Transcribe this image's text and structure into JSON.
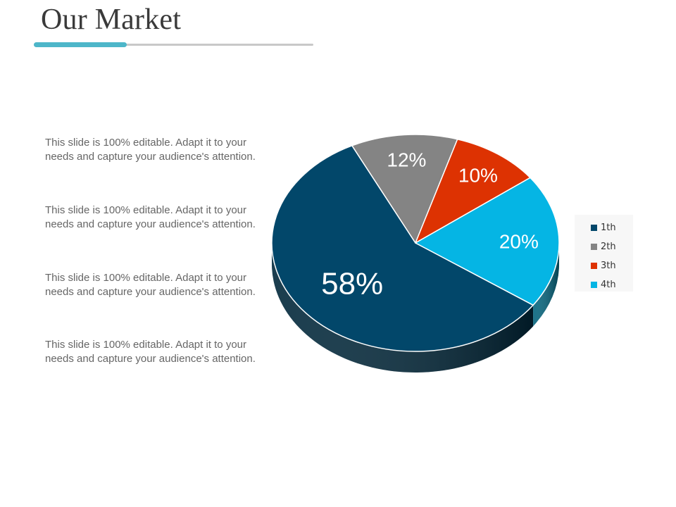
{
  "page": {
    "title": "Our Market",
    "accent_color": "#4db6c9"
  },
  "paragraphs": [
    "This slide is 100% editable. Adapt it to your needs and capture your audience's attention.",
    "This slide is 100% editable. Adapt it to your needs and capture your audience's attention.",
    "This slide is 100% editable. Adapt it to your needs and capture your audience's attention.",
    "This slide is 100% editable. Adapt it to your needs and capture your audience's attention."
  ],
  "chart_data": {
    "type": "pie",
    "style": "3d",
    "categories": [
      "1th",
      "2th",
      "3th",
      "4th"
    ],
    "values": [
      58,
      12,
      10,
      20
    ],
    "labels": [
      "58%",
      "12%",
      "10%",
      "20%"
    ],
    "colors": [
      "#02476a",
      "#848484",
      "#dd3202",
      "#05b5e4"
    ],
    "legend_position": "right",
    "title": ""
  }
}
